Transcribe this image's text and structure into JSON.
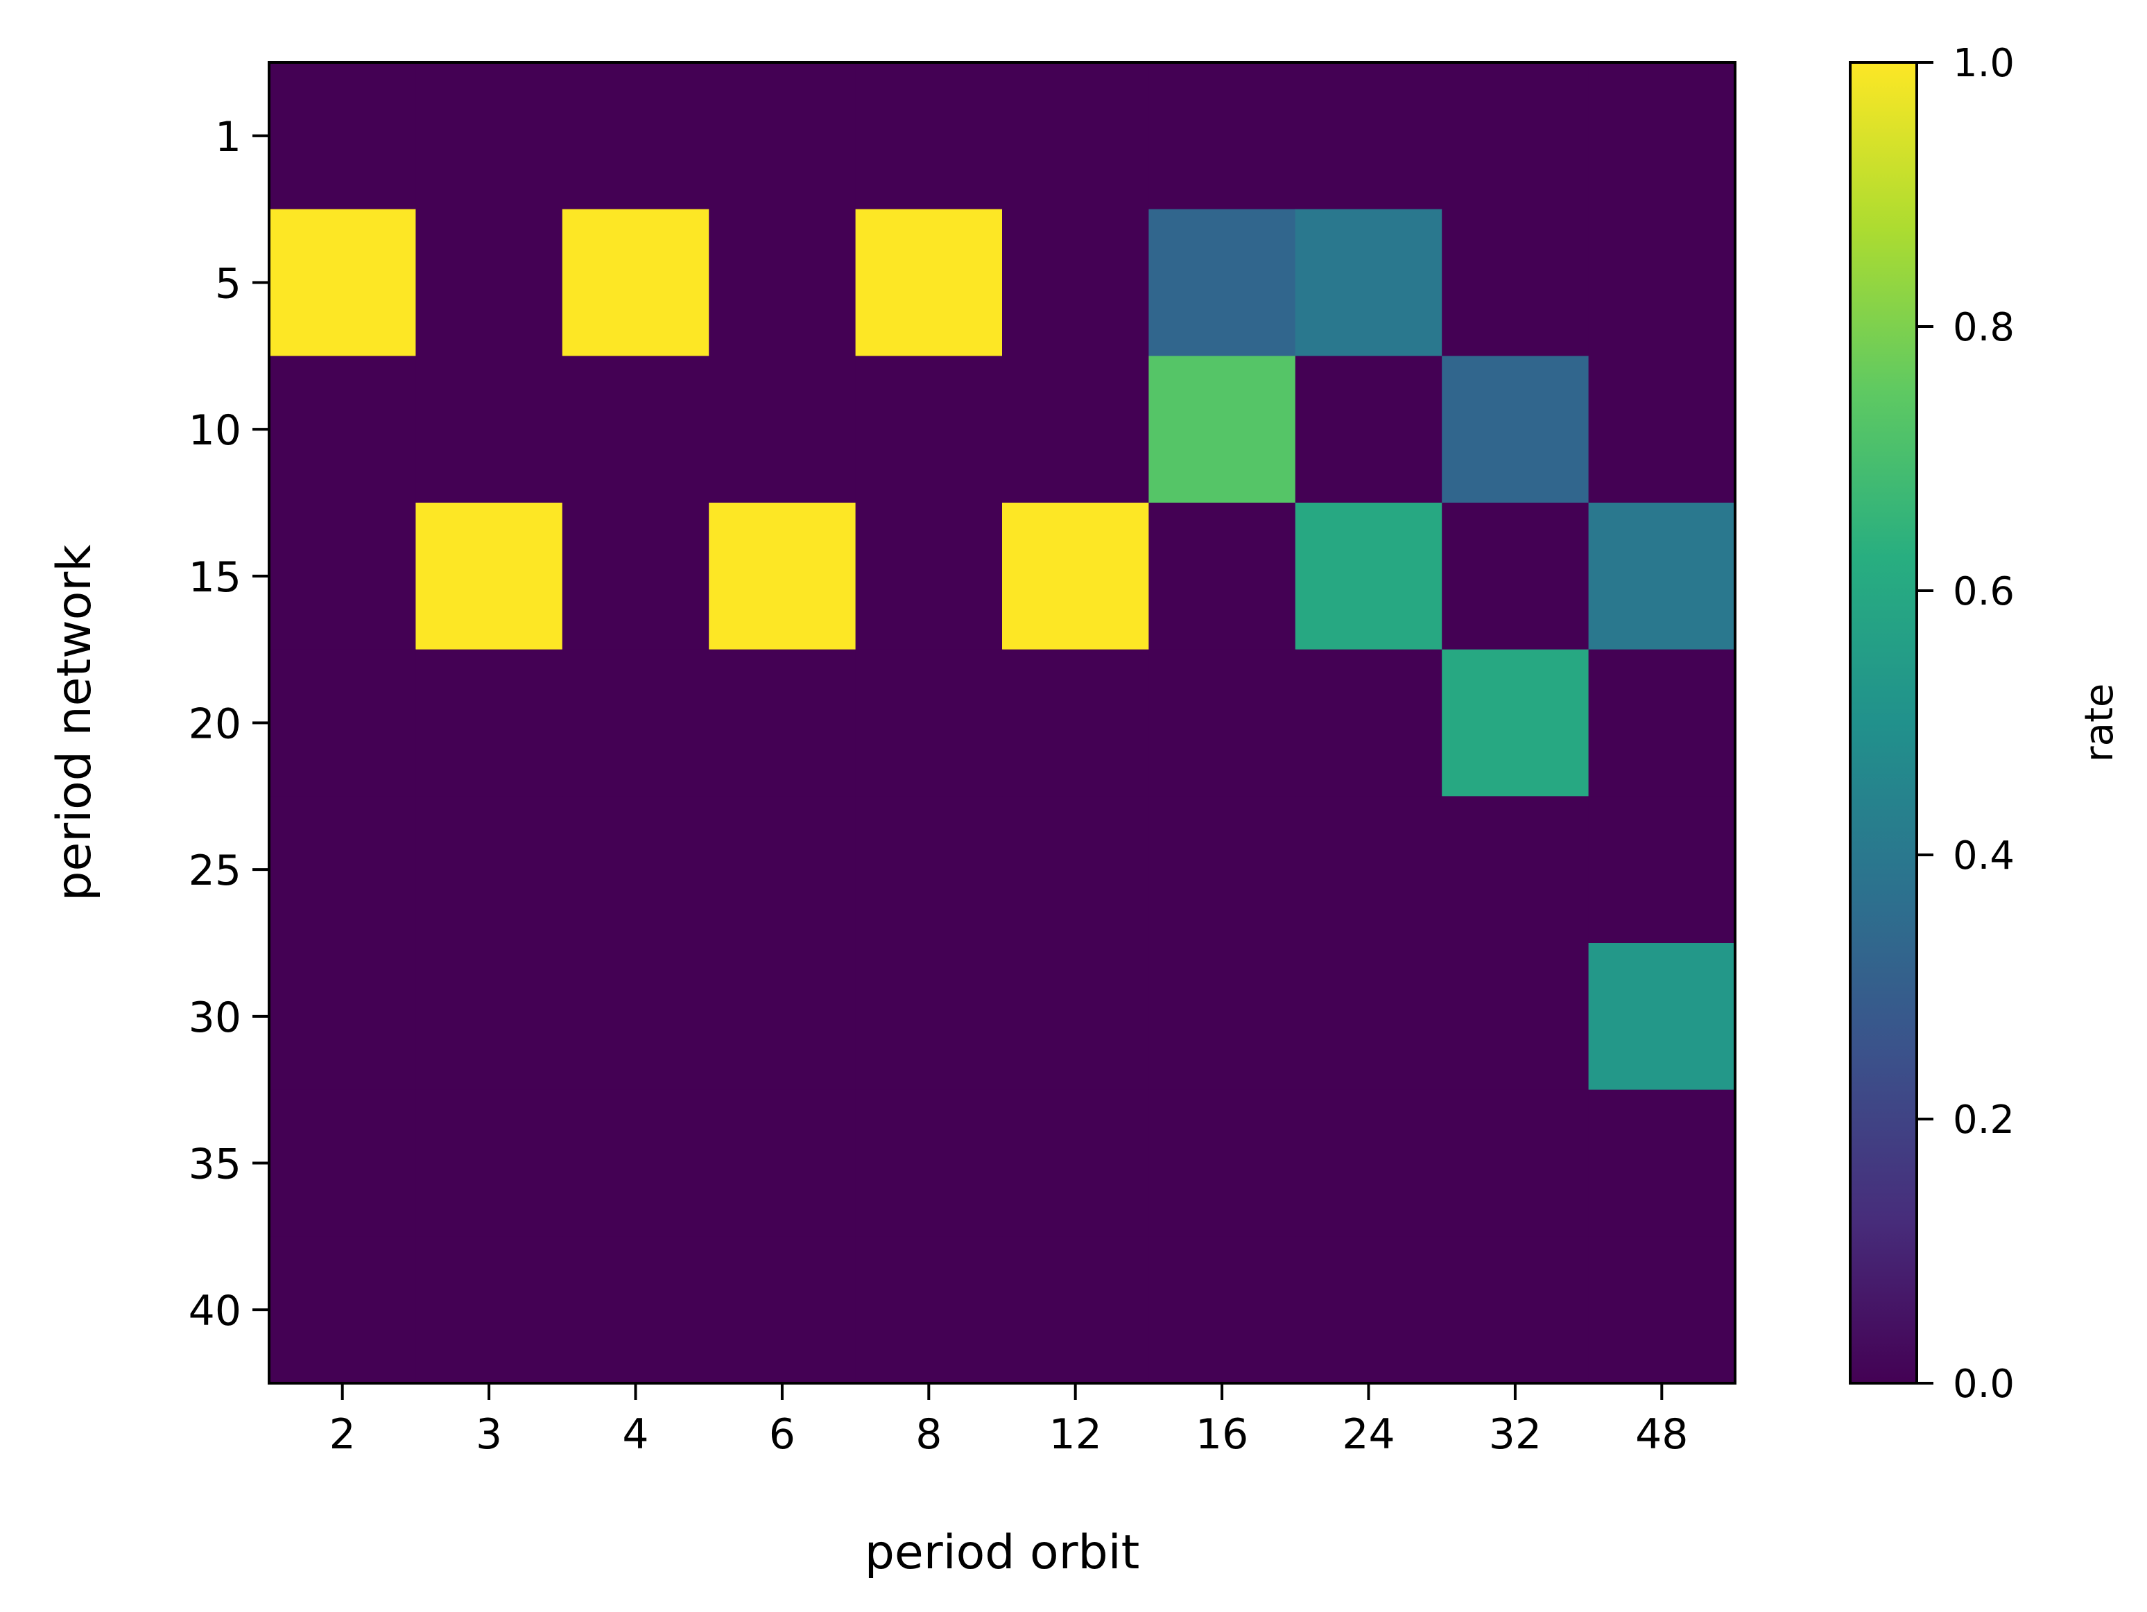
{
  "chart_data": {
    "type": "heatmap",
    "title": "",
    "xlabel": "period orbit",
    "ylabel": "period network",
    "x_categories": [
      "2",
      "3",
      "4",
      "6",
      "8",
      "12",
      "16",
      "24",
      "32",
      "48"
    ],
    "y_categories": [
      "1",
      "5",
      "10",
      "15",
      "20",
      "25",
      "30",
      "35",
      "40"
    ],
    "values": [
      [
        0,
        0,
        0,
        0,
        0,
        0,
        0,
        0,
        0,
        0
      ],
      [
        1.0,
        0,
        1.0,
        0,
        1.0,
        0,
        0.33,
        0.4,
        0,
        0
      ],
      [
        0,
        0,
        0,
        0,
        0,
        0,
        0.73,
        0,
        0.33,
        0
      ],
      [
        0,
        1.0,
        0,
        1.0,
        0,
        1.0,
        0,
        0.6,
        0,
        0.4
      ],
      [
        0,
        0,
        0,
        0,
        0,
        0,
        0,
        0,
        0.6,
        0
      ],
      [
        0,
        0,
        0,
        0,
        0,
        0,
        0,
        0,
        0,
        0
      ],
      [
        0,
        0,
        0,
        0,
        0,
        0,
        0,
        0,
        0,
        0.53
      ],
      [
        0,
        0,
        0,
        0,
        0,
        0,
        0,
        0,
        0,
        0
      ],
      [
        0,
        0,
        0,
        0,
        0,
        0,
        0,
        0,
        0,
        0
      ]
    ],
    "colormap": "viridis",
    "colorbar": {
      "label": "rate",
      "range": [
        0.0,
        1.0
      ],
      "ticks": [
        "0.0",
        "0.2",
        "0.4",
        "0.6",
        "0.8",
        "1.0"
      ]
    },
    "grid": false,
    "legend": "none"
  }
}
